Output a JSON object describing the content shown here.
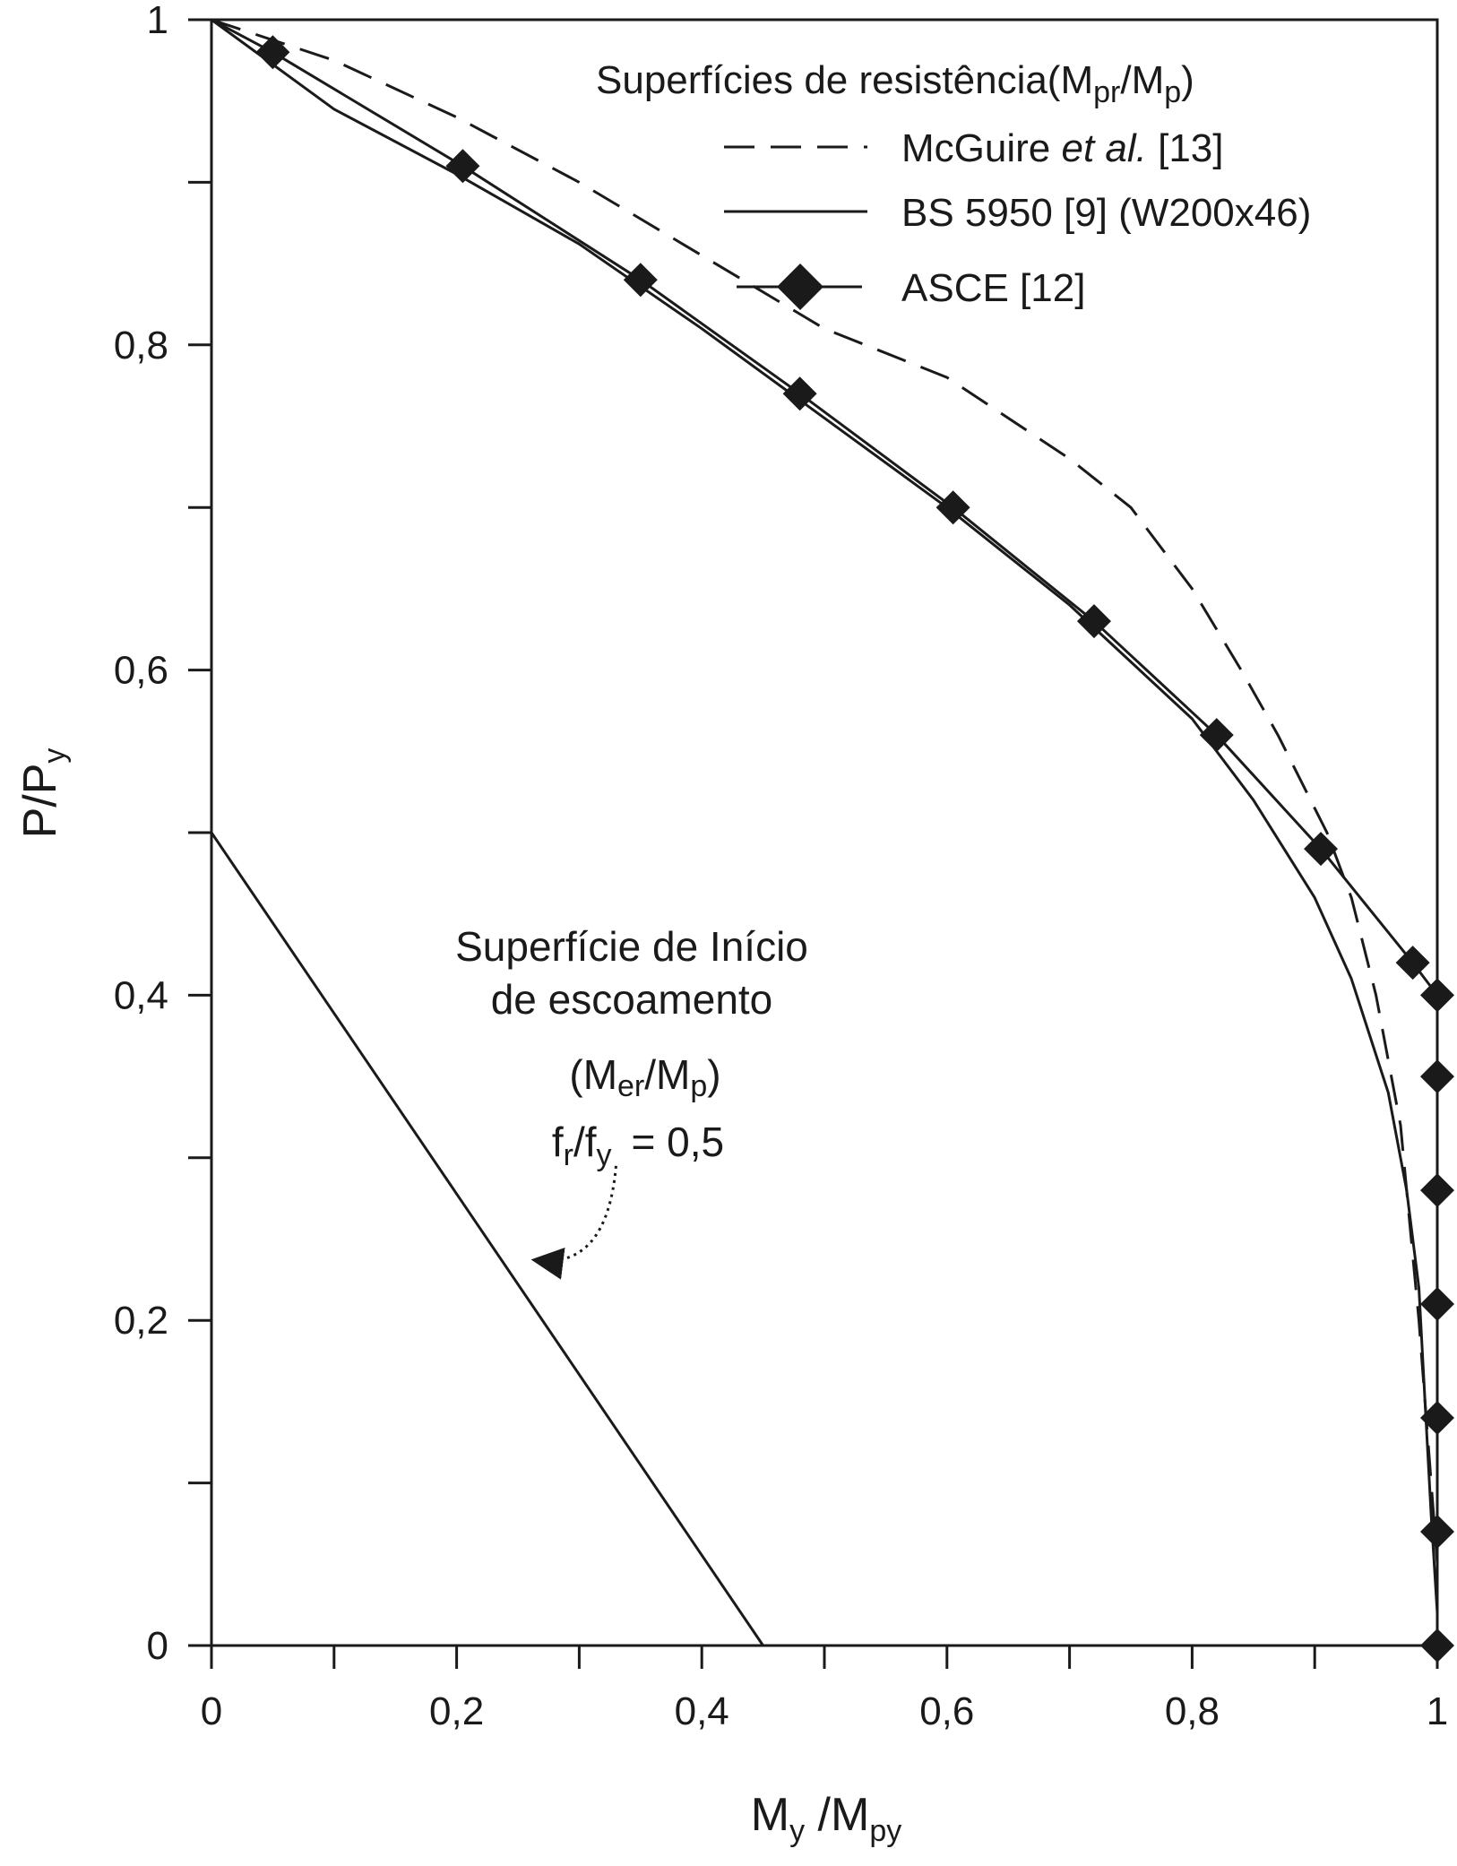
{
  "chart_data": {
    "type": "line",
    "xlabel": {
      "main": "M",
      "sub1": "y",
      "mid": " /M",
      "sub2": "py"
    },
    "ylabel": {
      "main": "P/P",
      "sub": "y"
    },
    "xlim": [
      0,
      1
    ],
    "ylim": [
      0,
      1
    ],
    "x_ticks": [
      0,
      0.2,
      0.4,
      0.6,
      0.8,
      1
    ],
    "x_tick_labels": [
      "0",
      "0,2",
      "0,4",
      "0,6",
      "0,8",
      "1"
    ],
    "x_minor_ticks": [
      0.1,
      0.3,
      0.5,
      0.7,
      0.9
    ],
    "y_ticks": [
      0,
      0.2,
      0.4,
      0.6,
      0.8,
      1
    ],
    "y_tick_labels": [
      "0",
      "0,2",
      "0,4",
      "0,6",
      "0,8",
      "1"
    ],
    "y_minor_ticks": [
      0.1,
      0.3,
      0.5,
      0.7,
      0.9
    ],
    "grid": false,
    "legend": {
      "title": {
        "main": "Superfícies de resistência(M",
        "sub1": "pr",
        "mid": "/M",
        "sub2": "p",
        "end": ")"
      },
      "placement": "top-right",
      "entries": [
        {
          "parts": [
            "McGuire ",
            "et al.",
            " [13]"
          ]
        },
        {
          "parts": [
            "BS 5950 [9] (W200x46)"
          ]
        },
        {
          "parts": [
            "ASCE [12]"
          ]
        }
      ]
    },
    "series": [
      {
        "style": "dashed",
        "points": [
          [
            0,
            1.0
          ],
          [
            0.1,
            0.975
          ],
          [
            0.2,
            0.94
          ],
          [
            0.3,
            0.9
          ],
          [
            0.4,
            0.855
          ],
          [
            0.5,
            0.81
          ],
          [
            0.6,
            0.78
          ],
          [
            0.7,
            0.73
          ],
          [
            0.75,
            0.7
          ],
          [
            0.8,
            0.65
          ],
          [
            0.84,
            0.6
          ],
          [
            0.87,
            0.56
          ],
          [
            0.89,
            0.53
          ],
          [
            0.91,
            0.5
          ],
          [
            0.93,
            0.46
          ],
          [
            0.95,
            0.4
          ],
          [
            0.96,
            0.36
          ],
          [
            0.97,
            0.32
          ],
          [
            0.975,
            0.28
          ],
          [
            0.98,
            0.24
          ],
          [
            0.985,
            0.2
          ],
          [
            0.99,
            0.15
          ],
          [
            0.995,
            0.1
          ],
          [
            1.0,
            0.05
          ],
          [
            1.0,
            0
          ]
        ]
      },
      {
        "style": "solid",
        "points": [
          [
            0,
            1.0
          ],
          [
            0.1,
            0.945
          ],
          [
            0.2,
            0.905
          ],
          [
            0.3,
            0.862
          ],
          [
            0.4,
            0.81
          ],
          [
            0.5,
            0.755
          ],
          [
            0.6,
            0.7
          ],
          [
            0.7,
            0.64
          ],
          [
            0.8,
            0.57
          ],
          [
            0.85,
            0.52
          ],
          [
            0.9,
            0.46
          ],
          [
            0.93,
            0.41
          ],
          [
            0.96,
            0.34
          ],
          [
            0.975,
            0.28
          ],
          [
            0.985,
            0.22
          ],
          [
            0.99,
            0.15
          ],
          [
            0.995,
            0.08
          ],
          [
            1.0,
            0.02
          ],
          [
            1.0,
            0
          ]
        ]
      },
      {
        "style": "solid-diamond",
        "points": [
          [
            0,
            1.0
          ],
          [
            0.05,
            0.98
          ],
          [
            0.205,
            0.91
          ],
          [
            0.35,
            0.84
          ],
          [
            0.48,
            0.77
          ],
          [
            0.605,
            0.7
          ],
          [
            0.72,
            0.63
          ],
          [
            0.82,
            0.56
          ],
          [
            0.905,
            0.49
          ],
          [
            0.98,
            0.42
          ],
          [
            1.0,
            0.4
          ],
          [
            1.0,
            0.35
          ],
          [
            1.0,
            0.28
          ],
          [
            1.0,
            0.21
          ],
          [
            1.0,
            0.14
          ],
          [
            1.0,
            0.07
          ],
          [
            1.0,
            0
          ]
        ]
      },
      {
        "style": "solid",
        "points": [
          [
            0,
            0.5
          ],
          [
            0.45,
            0
          ]
        ]
      }
    ],
    "annotation": {
      "line1": "Superfície de Início",
      "line2": "de escoamento",
      "line3": {
        "open": "(M",
        "sub1": "er",
        "mid": "/M",
        "sub2": "p",
        "close": ")"
      },
      "line4": {
        "f1": "f",
        "sub1": "r",
        "slash": "/f",
        "sub2": "y",
        "eq": "= 0,5"
      },
      "arrow_from": [
        0.33,
        0.295
      ],
      "arrow_to": [
        0.265,
        0.237
      ]
    }
  }
}
